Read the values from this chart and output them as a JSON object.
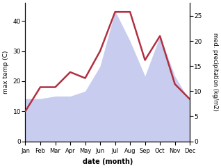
{
  "months": [
    "Jan",
    "Feb",
    "Mar",
    "Apr",
    "May",
    "Jun",
    "Jul",
    "Aug",
    "Sep",
    "Oct",
    "Nov",
    "Dec"
  ],
  "month_indices": [
    1,
    2,
    3,
    4,
    5,
    6,
    7,
    8,
    9,
    10,
    11,
    12
  ],
  "temp_max": [
    10,
    18,
    18,
    23,
    21,
    30,
    43,
    43,
    27,
    35,
    19,
    14
  ],
  "precipitation": [
    8.5,
    8.5,
    9,
    9,
    10,
    15,
    26,
    20,
    13,
    21,
    13,
    8
  ],
  "temp_color": "#b03040",
  "precip_fill_color": "#c8cdf0",
  "xlabel": "date (month)",
  "ylabel_left": "max temp (C)",
  "ylabel_right": "med. precipitation (kg/m2)",
  "ylim_left": [
    0,
    46
  ],
  "ylim_right": [
    0,
    27.6
  ],
  "yticks_left": [
    0,
    10,
    20,
    30,
    40
  ],
  "yticks_right": [
    0,
    5,
    10,
    15,
    20,
    25
  ],
  "bg_color": "#ffffff",
  "line_width": 1.8
}
